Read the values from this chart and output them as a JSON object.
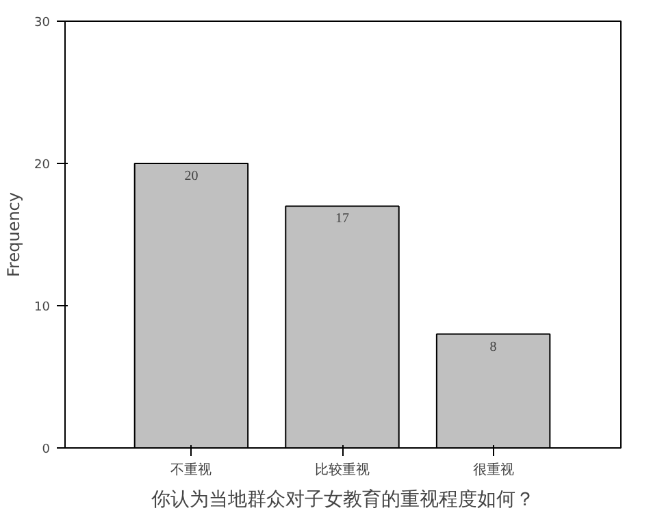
{
  "chart_data": {
    "type": "bar",
    "xlabel": "你认为当地群众对子女教育的重视程度如何？",
    "ylabel": "Frequency",
    "categories": [
      "不重视",
      "比较重视",
      "很重视"
    ],
    "values": [
      20,
      17,
      8
    ],
    "color": "#c0c0c0",
    "ylim": [
      0,
      30
    ],
    "yticks": [
      0,
      10,
      20,
      30
    ],
    "grid": false,
    "data_labels": true
  }
}
